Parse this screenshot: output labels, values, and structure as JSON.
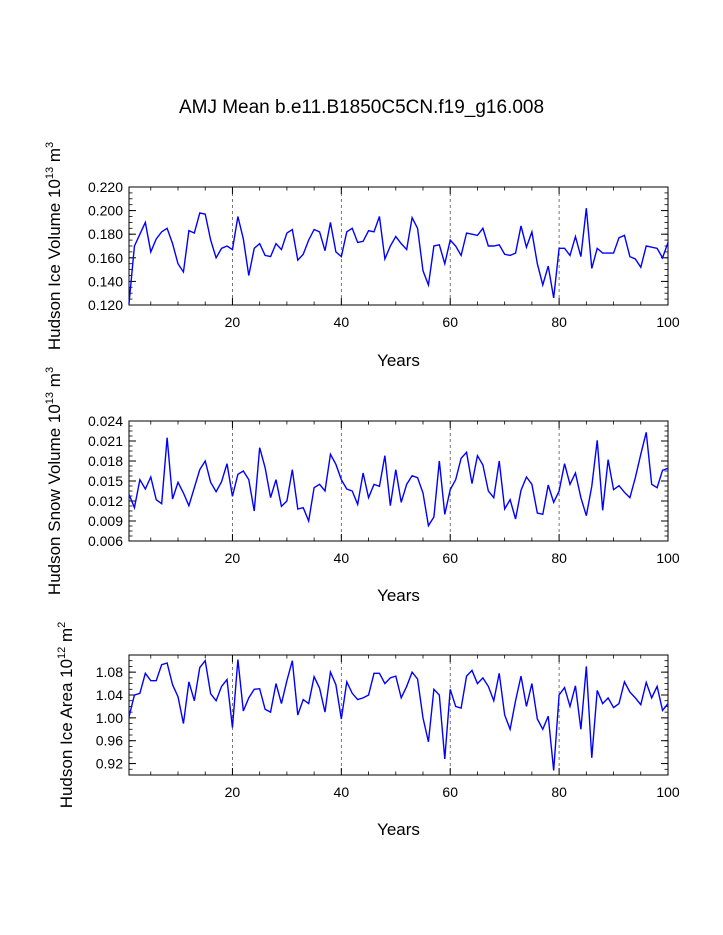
{
  "title": "AMJ Mean b.e11.B1850C5CN.f19_g16.008",
  "colors": {
    "line": "#0000ff",
    "axis": "#000000",
    "grid": "#555555"
  },
  "chart_data": [
    {
      "type": "line",
      "name": "ice-volume",
      "ylabel": "Hudson Ice Volume 10",
      "ylabel_exp": "13",
      "ylabel_unit": " m",
      "ylabel_unit_exp": "3",
      "xlabel": "Years",
      "xlim": [
        1,
        100
      ],
      "ylim": [
        0.12,
        0.22
      ],
      "yticks": [
        0.12,
        0.14,
        0.16,
        0.18,
        0.2,
        0.22
      ],
      "ytick_labels": [
        "0.120",
        "0.140",
        "0.160",
        "0.180",
        "0.200",
        "0.220"
      ],
      "xticks": [
        20,
        40,
        60,
        80,
        100
      ],
      "xtick_labels": [
        "20",
        "40",
        "60",
        "80",
        "100"
      ],
      "vlines": [
        20,
        40,
        60,
        80
      ],
      "values": [
        0.121,
        0.17,
        0.18,
        0.19,
        0.165,
        0.176,
        0.182,
        0.185,
        0.172,
        0.155,
        0.148,
        0.183,
        0.181,
        0.198,
        0.197,
        0.175,
        0.16,
        0.168,
        0.17,
        0.167,
        0.195,
        0.176,
        0.145,
        0.168,
        0.172,
        0.162,
        0.161,
        0.172,
        0.167,
        0.181,
        0.184,
        0.158,
        0.163,
        0.175,
        0.184,
        0.182,
        0.166,
        0.19,
        0.165,
        0.161,
        0.182,
        0.185,
        0.173,
        0.174,
        0.183,
        0.182,
        0.195,
        0.159,
        0.17,
        0.178,
        0.172,
        0.167,
        0.194,
        0.185,
        0.149,
        0.137,
        0.17,
        0.171,
        0.155,
        0.175,
        0.17,
        0.162,
        0.181,
        0.18,
        0.179,
        0.185,
        0.17,
        0.17,
        0.171,
        0.163,
        0.162,
        0.164,
        0.187,
        0.169,
        0.182,
        0.155,
        0.137,
        0.153,
        0.126,
        0.168,
        0.168,
        0.162,
        0.178,
        0.161,
        0.202,
        0.151,
        0.168,
        0.164,
        0.164,
        0.164,
        0.177,
        0.179,
        0.161,
        0.159,
        0.152,
        0.17,
        0.169,
        0.168,
        0.16,
        0.173
      ]
    },
    {
      "type": "line",
      "name": "snow-volume",
      "ylabel": "Hudson Snow Volume 10",
      "ylabel_exp": "13",
      "ylabel_unit": " m",
      "ylabel_unit_exp": "3",
      "xlabel": "Years",
      "xlim": [
        1,
        100
      ],
      "ylim": [
        0.006,
        0.024
      ],
      "yticks": [
        0.006,
        0.009,
        0.012,
        0.015,
        0.018,
        0.021,
        0.024
      ],
      "ytick_labels": [
        "0.006",
        "0.009",
        "0.012",
        "0.015",
        "0.018",
        "0.021",
        "0.024"
      ],
      "xticks": [
        20,
        40,
        60,
        80,
        100
      ],
      "xtick_labels": [
        "20",
        "40",
        "60",
        "80",
        "100"
      ],
      "vlines": [
        20,
        40,
        60,
        80
      ],
      "values": [
        0.013,
        0.011,
        0.0152,
        0.0138,
        0.0156,
        0.0122,
        0.0116,
        0.0215,
        0.0123,
        0.0148,
        0.0132,
        0.0113,
        0.014,
        0.0167,
        0.018,
        0.0148,
        0.0134,
        0.0149,
        0.0176,
        0.0127,
        0.016,
        0.0165,
        0.0152,
        0.0105,
        0.02,
        0.017,
        0.0125,
        0.0152,
        0.0112,
        0.012,
        0.0167,
        0.0108,
        0.011,
        0.009,
        0.014,
        0.0145,
        0.0135,
        0.019,
        0.0175,
        0.0152,
        0.0138,
        0.0135,
        0.0115,
        0.0162,
        0.0125,
        0.0145,
        0.0142,
        0.0188,
        0.0113,
        0.0167,
        0.0118,
        0.0145,
        0.0158,
        0.0155,
        0.0132,
        0.0083,
        0.0096,
        0.018,
        0.01,
        0.0137,
        0.0152,
        0.0184,
        0.0193,
        0.0146,
        0.0188,
        0.0174,
        0.0135,
        0.0125,
        0.018,
        0.0108,
        0.0122,
        0.0093,
        0.0136,
        0.0156,
        0.0145,
        0.0102,
        0.01,
        0.0144,
        0.0118,
        0.0135,
        0.0176,
        0.0145,
        0.0162,
        0.0125,
        0.0098,
        0.0142,
        0.0211,
        0.0106,
        0.0182,
        0.0137,
        0.0143,
        0.0133,
        0.0125,
        0.0155,
        0.019,
        0.0223,
        0.0145,
        0.014,
        0.0166,
        0.0169
      ]
    },
    {
      "type": "line",
      "name": "ice-area",
      "ylabel": "Hudson Ice Area 10",
      "ylabel_exp": "12",
      "ylabel_unit": " m",
      "ylabel_unit_exp": "2",
      "xlabel": "Years",
      "xlim": [
        1,
        100
      ],
      "ylim": [
        0.9,
        1.11
      ],
      "yticks": [
        0.92,
        0.96,
        1.0,
        1.04,
        1.08
      ],
      "ytick_labels": [
        "0.92",
        "0.96",
        "1.00",
        "1.04",
        "1.08"
      ],
      "xticks": [
        20,
        40,
        60,
        80,
        100
      ],
      "xtick_labels": [
        "20",
        "40",
        "60",
        "80",
        "100"
      ],
      "vlines": [
        20,
        40,
        60,
        80
      ],
      "values": [
        1.002,
        1.04,
        1.043,
        1.078,
        1.065,
        1.065,
        1.093,
        1.096,
        1.058,
        1.037,
        0.99,
        1.063,
        1.03,
        1.088,
        1.1,
        1.042,
        1.03,
        1.055,
        1.067,
        0.983,
        1.102,
        1.012,
        1.035,
        1.05,
        1.051,
        1.015,
        1.01,
        1.06,
        1.025,
        1.065,
        1.1,
        1.005,
        1.032,
        1.025,
        1.072,
        1.052,
        1.01,
        1.08,
        1.058,
        0.998,
        1.063,
        1.043,
        1.032,
        1.035,
        1.04,
        1.078,
        1.078,
        1.06,
        1.07,
        1.073,
        1.035,
        1.055,
        1.08,
        1.068,
        1.0,
        0.958,
        1.05,
        1.04,
        0.928,
        1.05,
        1.02,
        1.017,
        1.073,
        1.083,
        1.06,
        1.07,
        1.055,
        1.03,
        1.078,
        1.005,
        0.98,
        1.03,
        1.073,
        1.02,
        1.06,
        0.998,
        0.98,
        1.003,
        0.908,
        1.04,
        1.053,
        1.02,
        1.056,
        0.98,
        1.09,
        0.93,
        1.048,
        1.025,
        1.035,
        1.018,
        1.025,
        1.063,
        1.045,
        1.035,
        1.023,
        1.062,
        1.035,
        1.055,
        1.013,
        1.025
      ]
    }
  ]
}
